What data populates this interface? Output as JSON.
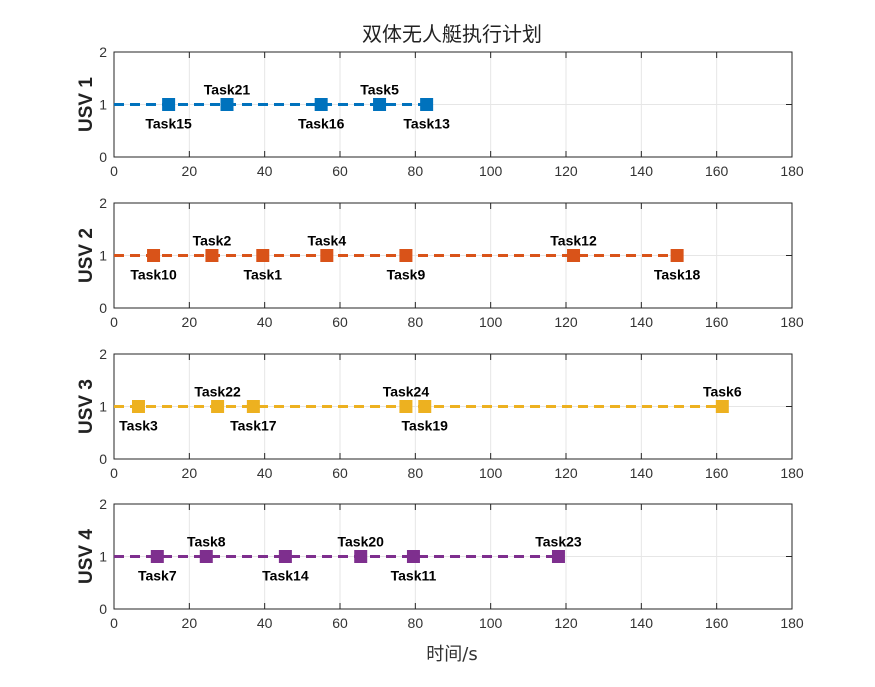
{
  "chart_data": {
    "type": "scatter",
    "title": "双体无人艇执行计划",
    "xlabel": "时间/s",
    "xlim": [
      0,
      180
    ],
    "ylim": [
      0,
      2
    ],
    "xticks": [
      0,
      20,
      40,
      60,
      80,
      100,
      120,
      140,
      160,
      180
    ],
    "yticks": [
      0,
      1,
      2
    ],
    "grid": true,
    "subplots": [
      {
        "ylabel": "USV 1",
        "color": "#0072BD",
        "tasks": [
          {
            "name": "Task15",
            "x": 14.5,
            "y": 1,
            "label_pos": "below"
          },
          {
            "name": "Task21",
            "x": 30,
            "y": 1,
            "label_pos": "above"
          },
          {
            "name": "Task16",
            "x": 55,
            "y": 1,
            "label_pos": "below"
          },
          {
            "name": "Task5",
            "x": 70.5,
            "y": 1,
            "label_pos": "above"
          },
          {
            "name": "Task13",
            "x": 83,
            "y": 1,
            "label_pos": "below"
          }
        ]
      },
      {
        "ylabel": "USV 2",
        "color": "#D95319",
        "tasks": [
          {
            "name": "Task10",
            "x": 10.5,
            "y": 1,
            "label_pos": "below"
          },
          {
            "name": "Task2",
            "x": 26,
            "y": 1,
            "label_pos": "above"
          },
          {
            "name": "Task1",
            "x": 39.5,
            "y": 1,
            "label_pos": "below"
          },
          {
            "name": "Task4",
            "x": 56.5,
            "y": 1,
            "label_pos": "above"
          },
          {
            "name": "Task9",
            "x": 77.5,
            "y": 1,
            "label_pos": "below"
          },
          {
            "name": "Task12",
            "x": 122,
            "y": 1,
            "label_pos": "above"
          },
          {
            "name": "Task18",
            "x": 149.5,
            "y": 1,
            "label_pos": "below"
          }
        ]
      },
      {
        "ylabel": "USV 3",
        "color": "#EDB120",
        "tasks": [
          {
            "name": "Task3",
            "x": 6.5,
            "y": 1,
            "label_pos": "below"
          },
          {
            "name": "Task22",
            "x": 27.5,
            "y": 1,
            "label_pos": "above"
          },
          {
            "name": "Task17",
            "x": 37,
            "y": 1,
            "label_pos": "below"
          },
          {
            "name": "Task24",
            "x": 77.5,
            "y": 1,
            "label_pos": "above"
          },
          {
            "name": "Task19",
            "x": 82.5,
            "y": 1,
            "label_pos": "below"
          },
          {
            "name": "Task6",
            "x": 161.5,
            "y": 1,
            "label_pos": "above"
          }
        ]
      },
      {
        "ylabel": "USV 4",
        "color": "#7E2F8E",
        "tasks": [
          {
            "name": "Task7",
            "x": 11.5,
            "y": 1,
            "label_pos": "below"
          },
          {
            "name": "Task8",
            "x": 24.5,
            "y": 1,
            "label_pos": "above"
          },
          {
            "name": "Task14",
            "x": 45.5,
            "y": 1,
            "label_pos": "below"
          },
          {
            "name": "Task20",
            "x": 65.5,
            "y": 1,
            "label_pos": "above"
          },
          {
            "name": "Task11",
            "x": 79.5,
            "y": 1,
            "label_pos": "below"
          },
          {
            "name": "Task23",
            "x": 118,
            "y": 1,
            "label_pos": "above"
          }
        ]
      }
    ]
  }
}
